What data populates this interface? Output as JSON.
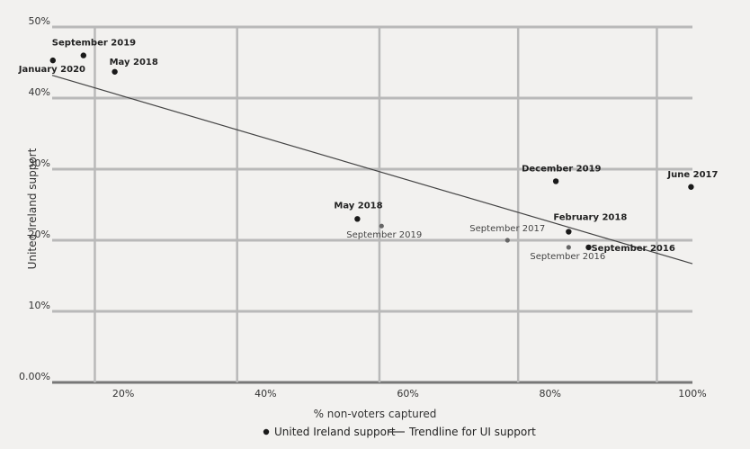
{
  "chart_data": {
    "type": "scatter",
    "xlabel": "% non-voters captured",
    "ylabel": "United Ireland support",
    "xlim": [
      10,
      100
    ],
    "ylim": [
      0,
      50
    ],
    "x_ticks": [
      {
        "value": 20,
        "label": "20%"
      },
      {
        "value": 40,
        "label": "40%"
      },
      {
        "value": 60,
        "label": "60%"
      },
      {
        "value": 80,
        "label": "80%"
      },
      {
        "value": 100,
        "label": "100%"
      }
    ],
    "y_ticks": [
      {
        "value": 0,
        "label": "0.00%"
      },
      {
        "value": 10,
        "label": "10%"
      },
      {
        "value": 20,
        "label": "20%"
      },
      {
        "value": 30,
        "label": "30%"
      },
      {
        "value": 40,
        "label": "40%"
      },
      {
        "value": 50,
        "label": "50%"
      }
    ],
    "vertical_grid_x": [
      16,
      36,
      56,
      75.5,
      95
    ],
    "series": [
      {
        "name": "United Ireland support",
        "points": [
          {
            "x": 10.1,
            "y": 45.3,
            "label": "January 2020",
            "style": "dark"
          },
          {
            "x": 14.4,
            "y": 46.0,
            "label": "September 2019",
            "style": "dark"
          },
          {
            "x": 18.8,
            "y": 43.7,
            "label": "May 2018",
            "style": "dark"
          },
          {
            "x": 52.9,
            "y": 23.0,
            "label": "May 2018",
            "style": "dark"
          },
          {
            "x": 56.3,
            "y": 22.0,
            "label": "September 2019",
            "style": "light"
          },
          {
            "x": 74.0,
            "y": 20.0,
            "label": "September 2017",
            "style": "light"
          },
          {
            "x": 80.8,
            "y": 28.3,
            "label": "December 2019",
            "style": "dark"
          },
          {
            "x": 82.6,
            "y": 21.2,
            "label": "February 2018",
            "style": "dark"
          },
          {
            "x": 82.6,
            "y": 19.0,
            "label": "September 2016",
            "style": "light"
          },
          {
            "x": 85.4,
            "y": 19.0,
            "label": "September 2016",
            "style": "dark"
          },
          {
            "x": 99.8,
            "y": 27.5,
            "label": "June 2017",
            "style": "dark"
          }
        ]
      },
      {
        "name": "Trendline for UI support",
        "type": "line",
        "points": [
          {
            "x": 10.0,
            "y": 43.2
          },
          {
            "x": 100.0,
            "y": 16.7
          }
        ]
      }
    ],
    "legend": {
      "position": "bottom-center",
      "items": [
        {
          "marker": "dot",
          "label": "United Ireland support"
        },
        {
          "marker": "line",
          "label": "Trendline for UI support"
        }
      ]
    },
    "colors": {
      "dark_point": "#1a1a1a",
      "light_point": "#666666",
      "grid": "#b9b9b9",
      "trendline": "#444444"
    }
  }
}
